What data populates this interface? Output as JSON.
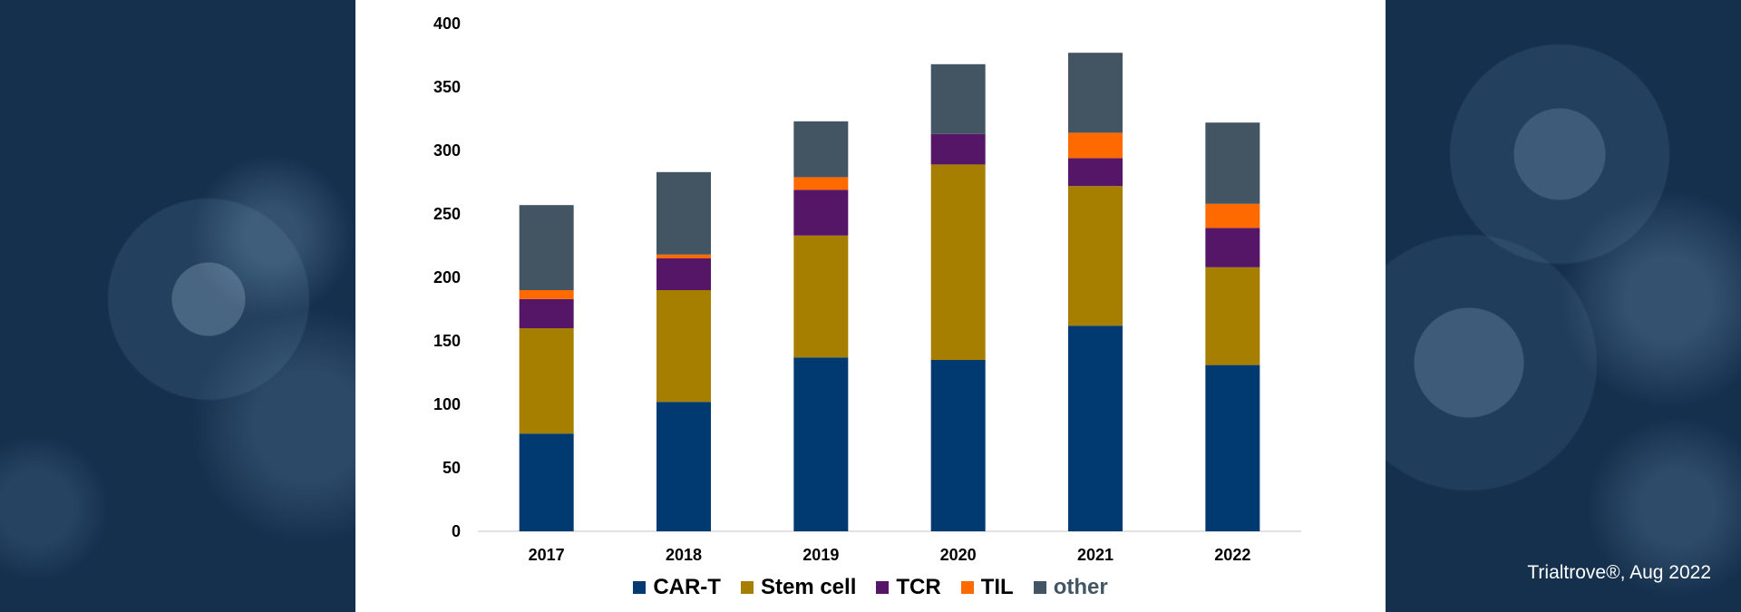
{
  "chart_data": {
    "type": "bar",
    "stacked": true,
    "categories": [
      "2017",
      "2018",
      "2019",
      "2020",
      "2021",
      "2022"
    ],
    "series": [
      {
        "name": "CAR-T",
        "color": "#003a70",
        "values": [
          77,
          102,
          137,
          135,
          162,
          131
        ]
      },
      {
        "name": "Stem cell",
        "color": "#a67f00",
        "values": [
          83,
          88,
          96,
          154,
          110,
          77
        ]
      },
      {
        "name": "TCR",
        "color": "#561668",
        "values": [
          23,
          25,
          36,
          24,
          22,
          31
        ]
      },
      {
        "name": "TIL",
        "color": "#ff6a00",
        "values": [
          7,
          3,
          10,
          0,
          20,
          19
        ]
      },
      {
        "name": "other",
        "color": "#435563",
        "values": [
          67,
          65,
          44,
          55,
          63,
          64
        ]
      }
    ],
    "ylim": [
      0,
      400
    ],
    "yticks": [
      "0",
      "50",
      "100",
      "150",
      "200",
      "250",
      "300",
      "350",
      "400"
    ],
    "grid": false,
    "legend": "bottom"
  },
  "source": "Trialtrove®, Aug 2022"
}
